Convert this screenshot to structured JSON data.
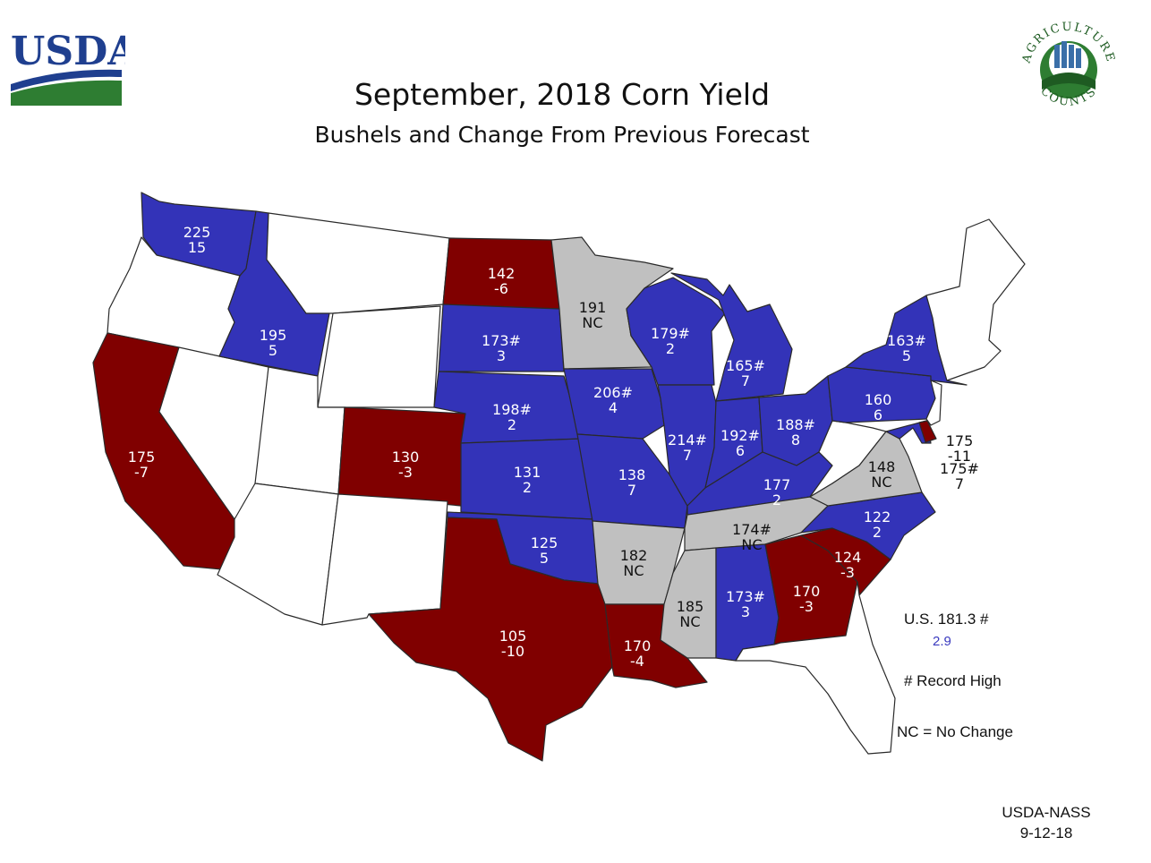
{
  "title": "September, 2018 Corn Yield",
  "subtitle": "Bushels and Change From Previous Forecast",
  "logos": {
    "usda": "USDA",
    "ag_top": "AGRICULTURE",
    "ag_bottom": "COUNTS"
  },
  "colors": {
    "increase": "#3333b8",
    "decrease": "#800000",
    "no_change": "#c0c0c0",
    "no_estimate": "#ffffff",
    "usda_blue": "#1f3f8f",
    "usda_green": "#2e7d32"
  },
  "labels": {
    "wa": {
      "yield": "225",
      "change": "15"
    },
    "id": {
      "yield": "195",
      "change": "5"
    },
    "ca": {
      "yield": "175",
      "change": "-7"
    },
    "co": {
      "yield": "130",
      "change": "-3"
    },
    "nd": {
      "yield": "142",
      "change": "-6"
    },
    "sd": {
      "yield": "173#",
      "change": "3"
    },
    "ne": {
      "yield": "198#",
      "change": "2"
    },
    "ks": {
      "yield": "131",
      "change": "2"
    },
    "ok": {
      "yield": "125",
      "change": "5"
    },
    "tx": {
      "yield": "105",
      "change": "-10"
    },
    "mn": {
      "yield": "191",
      "change": "NC"
    },
    "ia": {
      "yield": "206#",
      "change": "4"
    },
    "mo": {
      "yield": "138",
      "change": "7"
    },
    "ar": {
      "yield": "182",
      "change": "NC"
    },
    "la": {
      "yield": "170",
      "change": "-4"
    },
    "wi": {
      "yield": "179#",
      "change": "2"
    },
    "il": {
      "yield": "214#",
      "change": "7"
    },
    "mi": {
      "yield": "165#",
      "change": "7"
    },
    "in": {
      "yield": "192#",
      "change": "6"
    },
    "oh": {
      "yield": "188#",
      "change": "8"
    },
    "ky": {
      "yield": "177",
      "change": "2"
    },
    "tn": {
      "yield": "174#",
      "change": "NC"
    },
    "ms": {
      "yield": "185",
      "change": "NC"
    },
    "al": {
      "yield": "173#",
      "change": "3"
    },
    "ga": {
      "yield": "170",
      "change": "-3"
    },
    "sc": {
      "yield": "124",
      "change": "-3"
    },
    "nc": {
      "yield": "122",
      "change": "2"
    },
    "va": {
      "yield": "148",
      "change": "NC"
    },
    "pa": {
      "yield": "160",
      "change": "6"
    },
    "ny": {
      "yield": "163#",
      "change": "5"
    },
    "de": {
      "yield": "175",
      "change": "-11"
    },
    "md": {
      "yield": "175#",
      "change": "7"
    }
  },
  "legend": {
    "us_total": "U.S.  181.3  #",
    "us_change": "2.9",
    "record_note": "#  Record High",
    "nc_note": "NC = No Change"
  },
  "source": {
    "agency": "USDA-NASS",
    "date": "9-12-18"
  }
}
